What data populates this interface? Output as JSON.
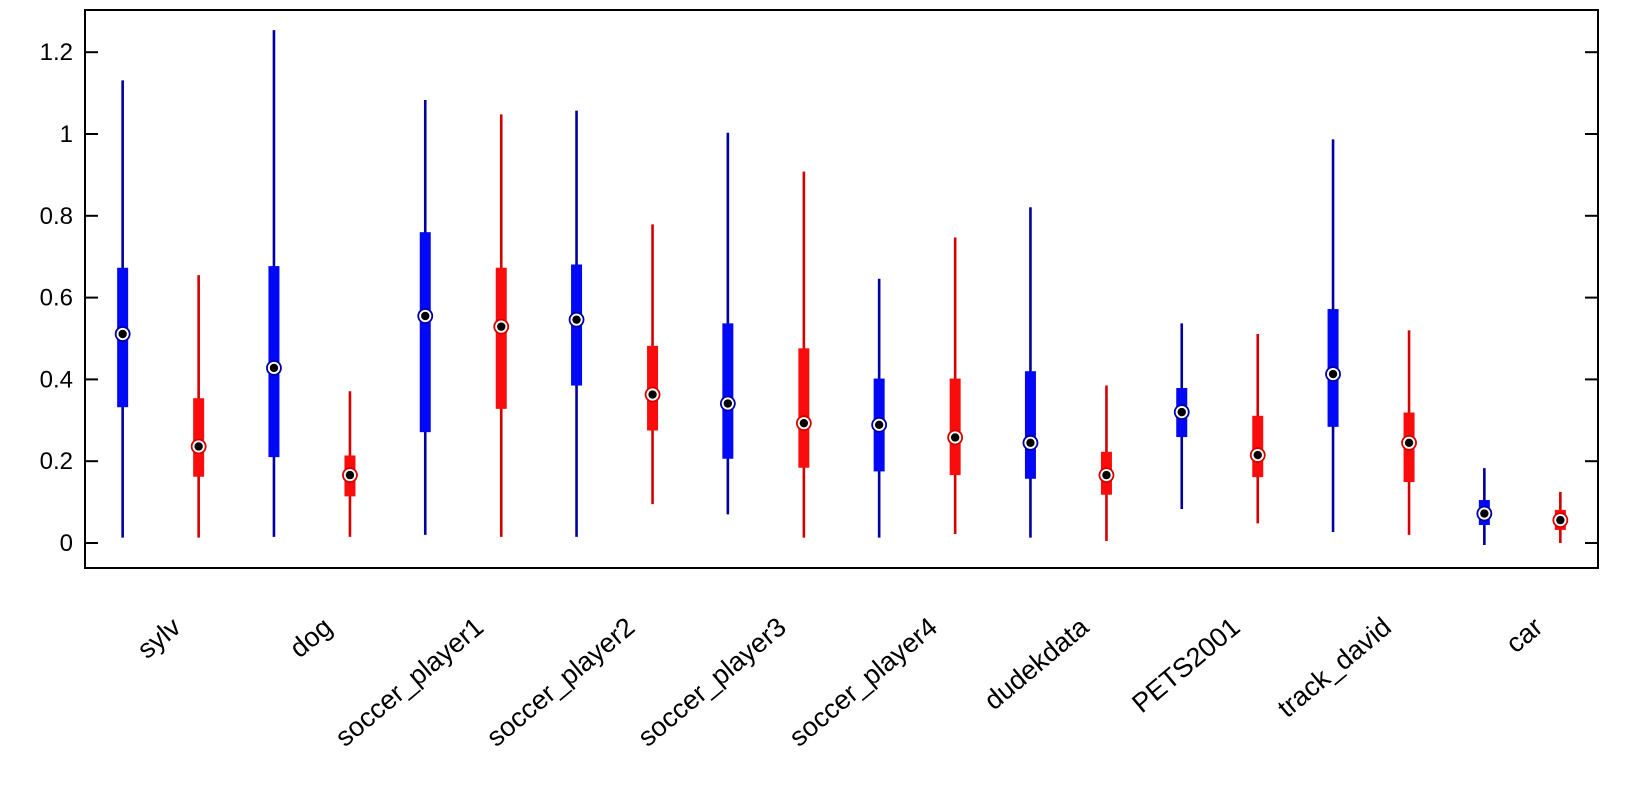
{
  "figure": {
    "kind": "matlab-style-boxplot-figure",
    "background": "#ffffff",
    "axis_color": "#000000"
  },
  "chart_data": {
    "type": "boxplot",
    "title": "",
    "xlabel": "",
    "ylabel": "",
    "grid": false,
    "legend": null,
    "categories": [
      "sylv",
      "dog",
      "soccer_player1",
      "soccer_player2",
      "soccer_player3",
      "soccer_player4",
      "dudekdata",
      "PETS2001",
      "track_david",
      "car"
    ],
    "y_ticks": [
      0,
      0.2,
      0.4,
      0.6,
      0.8,
      1,
      1.2
    ],
    "y_tick_labels": [
      "0",
      "0.2",
      "0.4",
      "0.6",
      "0.8",
      "1",
      "1.2"
    ],
    "ylim": [
      -0.06,
      1.3
    ],
    "x_label_rotation_deg": -40,
    "marker": {
      "outer_fill": "#ffffff",
      "dot_color": "#000000"
    },
    "series": [
      {
        "name": "blue",
        "box_color": "#0008f5",
        "line_color": "#0000a0",
        "boxes": [
          {
            "whisker_low": 0.013,
            "q1": 0.332,
            "median": 0.511,
            "q3": 0.673,
            "whisker_high": 1.131
          },
          {
            "whisker_low": 0.015,
            "q1": 0.21,
            "median": 0.428,
            "q3": 0.677,
            "whisker_high": 1.254
          },
          {
            "whisker_low": 0.02,
            "q1": 0.271,
            "median": 0.555,
            "q3": 0.76,
            "whisker_high": 1.083
          },
          {
            "whisker_low": 0.015,
            "q1": 0.385,
            "median": 0.546,
            "q3": 0.681,
            "whisker_high": 1.057
          },
          {
            "whisker_low": 0.07,
            "q1": 0.206,
            "median": 0.341,
            "q3": 0.537,
            "whisker_high": 1.003
          },
          {
            "whisker_low": 0.013,
            "q1": 0.175,
            "median": 0.289,
            "q3": 0.402,
            "whisker_high": 0.646
          },
          {
            "whisker_low": 0.013,
            "q1": 0.157,
            "median": 0.245,
            "q3": 0.42,
            "whisker_high": 0.821
          },
          {
            "whisker_low": 0.083,
            "q1": 0.259,
            "median": 0.32,
            "q3": 0.379,
            "whisker_high": 0.537
          },
          {
            "whisker_low": 0.027,
            "q1": 0.284,
            "median": 0.413,
            "q3": 0.572,
            "whisker_high": 0.987
          },
          {
            "whisker_low": -0.005,
            "q1": 0.044,
            "median": 0.072,
            "q3": 0.105,
            "whisker_high": 0.183
          }
        ]
      },
      {
        "name": "red",
        "box_color": "#fa0c0c",
        "line_color": "#d40000",
        "boxes": [
          {
            "whisker_low": 0.013,
            "q1": 0.162,
            "median": 0.236,
            "q3": 0.354,
            "whisker_high": 0.655
          },
          {
            "whisker_low": 0.015,
            "q1": 0.114,
            "median": 0.166,
            "q3": 0.214,
            "whisker_high": 0.371
          },
          {
            "whisker_low": 0.015,
            "q1": 0.328,
            "median": 0.529,
            "q3": 0.673,
            "whisker_high": 1.048
          },
          {
            "whisker_low": 0.095,
            "q1": 0.275,
            "median": 0.363,
            "q3": 0.482,
            "whisker_high": 0.779
          },
          {
            "whisker_low": 0.013,
            "q1": 0.184,
            "median": 0.293,
            "q3": 0.476,
            "whisker_high": 0.908
          },
          {
            "whisker_low": 0.022,
            "q1": 0.166,
            "median": 0.258,
            "q3": 0.402,
            "whisker_high": 0.747
          },
          {
            "whisker_low": 0.005,
            "q1": 0.118,
            "median": 0.166,
            "q3": 0.223,
            "whisker_high": 0.385
          },
          {
            "whisker_low": 0.048,
            "q1": 0.161,
            "median": 0.215,
            "q3": 0.311,
            "whisker_high": 0.511
          },
          {
            "whisker_low": 0.02,
            "q1": 0.149,
            "median": 0.245,
            "q3": 0.319,
            "whisker_high": 0.52
          },
          {
            "whisker_low": 0.0,
            "q1": 0.032,
            "median": 0.056,
            "q3": 0.081,
            "whisker_high": 0.125
          }
        ]
      }
    ]
  }
}
